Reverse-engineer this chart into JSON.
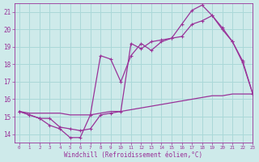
{
  "xlabel": "Windchill (Refroidissement éolien,°C)",
  "bg_color": "#ceeaea",
  "line_color": "#993399",
  "grid_color": "#aad8d8",
  "line1_x": [
    0,
    1,
    2,
    3,
    4,
    5,
    6,
    7,
    8,
    9,
    10,
    11,
    12,
    13,
    14,
    15,
    16,
    17,
    18,
    19,
    20,
    21,
    22,
    23
  ],
  "line1_y": [
    15.3,
    15.1,
    14.9,
    14.5,
    14.3,
    13.8,
    13.8,
    15.1,
    18.5,
    18.3,
    17.0,
    18.5,
    19.2,
    18.8,
    19.3,
    19.5,
    19.6,
    20.3,
    20.5,
    20.8,
    20.0,
    19.3,
    18.1,
    16.3
  ],
  "line2_x": [
    0,
    1,
    2,
    3,
    4,
    5,
    6,
    7,
    8,
    9,
    10,
    11,
    12,
    13,
    14,
    15,
    16,
    17,
    18,
    19,
    20,
    21,
    22,
    23
  ],
  "line2_y": [
    15.3,
    15.1,
    14.9,
    14.9,
    14.4,
    14.3,
    14.2,
    14.3,
    15.1,
    15.2,
    15.3,
    19.2,
    18.9,
    19.3,
    19.4,
    19.5,
    20.3,
    21.1,
    21.4,
    20.8,
    20.1,
    19.3,
    18.2,
    16.3
  ],
  "line3_x": [
    0,
    1,
    2,
    3,
    4,
    5,
    6,
    7,
    8,
    9,
    10,
    11,
    12,
    13,
    14,
    15,
    16,
    17,
    18,
    19,
    20,
    21,
    22,
    23
  ],
  "line3_y": [
    15.3,
    15.2,
    15.2,
    15.2,
    15.2,
    15.1,
    15.1,
    15.1,
    15.2,
    15.3,
    15.3,
    15.4,
    15.5,
    15.6,
    15.7,
    15.8,
    15.9,
    16.0,
    16.1,
    16.2,
    16.2,
    16.3,
    16.3,
    16.3
  ],
  "ylim": [
    13.5,
    21.5
  ],
  "xlim": [
    -0.5,
    23
  ],
  "yticks": [
    14,
    15,
    16,
    17,
    18,
    19,
    20,
    21
  ],
  "xticks": [
    0,
    1,
    2,
    3,
    4,
    5,
    6,
    7,
    8,
    9,
    10,
    11,
    12,
    13,
    14,
    15,
    16,
    17,
    18,
    19,
    20,
    21,
    22,
    23
  ]
}
